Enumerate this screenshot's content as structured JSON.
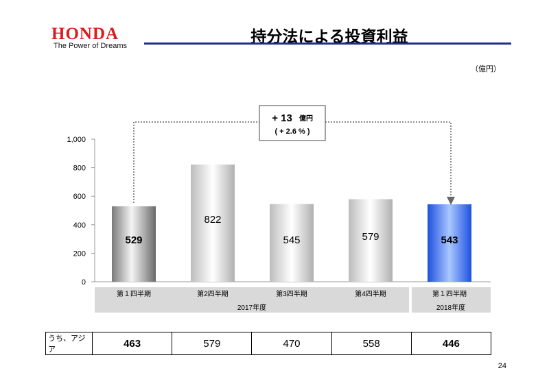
{
  "header": {
    "logo": "HONDA",
    "tagline": "The Power of Dreams",
    "title": "持分法による投資利益",
    "unit": "（億円）"
  },
  "callout": {
    "line1": "+ 13",
    "line1_unit": "億円",
    "line2": "( + 2.6 % )"
  },
  "chart_data": {
    "type": "bar",
    "title": "持分法による投資利益",
    "ylabel": "（億円）",
    "ylim": [
      0,
      1000
    ],
    "yticks": [
      0,
      200,
      400,
      600,
      800,
      1000
    ],
    "ytick_labels": [
      "0",
      "200",
      "400",
      "600",
      "800",
      "1,000"
    ],
    "categories": [
      "第１四半期",
      "第2四半期",
      "第3四半期",
      "第4四半期",
      "第１四半期"
    ],
    "groups": [
      "2017年度",
      "2018年度"
    ],
    "values": [
      529,
      822,
      545,
      579,
      543
    ],
    "value_labels": [
      "529",
      "822",
      "545",
      "579",
      "543"
    ],
    "highlight_color": "#3a6de6",
    "base_color": "#c8c8c8"
  },
  "asia_row": {
    "label": "うち、アジア",
    "values": [
      "463",
      "579",
      "470",
      "558",
      "446"
    ]
  },
  "page_number": "24"
}
